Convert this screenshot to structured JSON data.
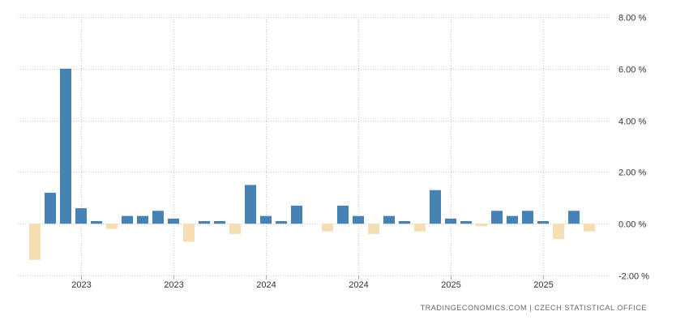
{
  "chart_data": {
    "type": "bar",
    "title": "",
    "xlabel": "",
    "ylabel": "",
    "ylim": [
      -2,
      8
    ],
    "y_ticks": [
      8,
      6,
      4,
      2,
      0,
      -2
    ],
    "y_tick_labels": [
      "8.00 %",
      "6.00 %",
      "4.00 %",
      "2.00 %",
      "0.00 %",
      "-2.00 %"
    ],
    "x_tick_labels": [
      "2023",
      "2023",
      "2024",
      "2024",
      "2025",
      "2025"
    ],
    "x_tick_bar_index": [
      3,
      9,
      15,
      21,
      27,
      33
    ],
    "grid": true,
    "legend": "none",
    "positive_color": "#4682b4",
    "negative_color": "#f5deb3",
    "values": [
      -1.4,
      1.2,
      6.0,
      0.6,
      0.1,
      -0.2,
      0.3,
      0.3,
      0.5,
      0.2,
      -0.7,
      0.1,
      0.1,
      -0.4,
      1.5,
      0.3,
      0.1,
      0.7,
      0.0,
      -0.3,
      0.7,
      0.3,
      -0.4,
      0.3,
      0.1,
      -0.3,
      1.3,
      0.2,
      0.1,
      -0.1,
      0.5,
      0.3,
      0.5,
      0.1,
      -0.6,
      0.5,
      -0.3
    ]
  },
  "source_text": "TRADINGECONOMICS.COM  |  CZECH STATISTICAL OFFICE"
}
